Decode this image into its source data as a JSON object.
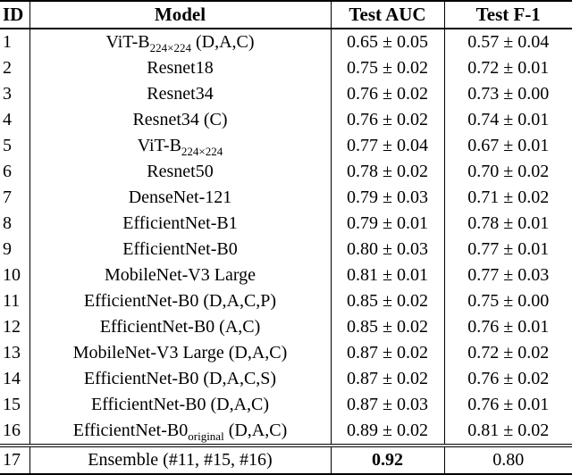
{
  "colors": {
    "text": "#000000",
    "background": "#ffffff",
    "rules": "#000000"
  },
  "table": {
    "headers": {
      "id": "ID",
      "model": "Model",
      "auc": "Test AUC",
      "f1": "Test F-1"
    },
    "rows": [
      {
        "id": "1",
        "model_main": "ViT-B",
        "model_sub": "224×224",
        "model_suffix": " (D,A,C)",
        "auc": "0.65 ± 0.05",
        "f1": "0.57 ± 0.04"
      },
      {
        "id": "2",
        "model_main": "Resnet18",
        "model_sub": "",
        "model_suffix": "",
        "auc": "0.75 ± 0.02",
        "f1": "0.72 ± 0.01"
      },
      {
        "id": "3",
        "model_main": "Resnet34",
        "model_sub": "",
        "model_suffix": "",
        "auc": "0.76 ± 0.02",
        "f1": "0.73 ± 0.00"
      },
      {
        "id": "4",
        "model_main": "Resnet34 (C)",
        "model_sub": "",
        "model_suffix": "",
        "auc": "0.76 ± 0.02",
        "f1": "0.74 ± 0.01"
      },
      {
        "id": "5",
        "model_main": "ViT-B",
        "model_sub": "224×224",
        "model_suffix": "",
        "auc": "0.77 ± 0.04",
        "f1": "0.67 ± 0.01"
      },
      {
        "id": "6",
        "model_main": "Resnet50",
        "model_sub": "",
        "model_suffix": "",
        "auc": "0.78 ± 0.02",
        "f1": "0.70 ± 0.02"
      },
      {
        "id": "7",
        "model_main": "DenseNet-121",
        "model_sub": "",
        "model_suffix": "",
        "auc": "0.79 ± 0.03",
        "f1": "0.71 ± 0.02"
      },
      {
        "id": "8",
        "model_main": "EfficientNet-B1",
        "model_sub": "",
        "model_suffix": "",
        "auc": "0.79 ± 0.01",
        "f1": "0.78 ± 0.01"
      },
      {
        "id": "9",
        "model_main": "EfficientNet-B0",
        "model_sub": "",
        "model_suffix": "",
        "auc": "0.80 ± 0.03",
        "f1": "0.77 ± 0.01"
      },
      {
        "id": "10",
        "model_main": "MobileNet-V3 Large",
        "model_sub": "",
        "model_suffix": "",
        "auc": "0.81 ± 0.01",
        "f1": "0.77 ± 0.03"
      },
      {
        "id": "11",
        "model_main": "EfficientNet-B0 (D,A,C,P)",
        "model_sub": "",
        "model_suffix": "",
        "auc": "0.85 ± 0.02",
        "f1": "0.75 ± 0.00"
      },
      {
        "id": "12",
        "model_main": "EfficientNet-B0 (A,C)",
        "model_sub": "",
        "model_suffix": "",
        "auc": "0.85 ± 0.02",
        "f1": "0.76 ± 0.01"
      },
      {
        "id": "13",
        "model_main": "MobileNet-V3 Large (D,A,C)",
        "model_sub": "",
        "model_suffix": "",
        "auc": "0.87 ± 0.02",
        "f1": "0.72 ± 0.02"
      },
      {
        "id": "14",
        "model_main": "EfficientNet-B0 (D,A,C,S)",
        "model_sub": "",
        "model_suffix": "",
        "auc": "0.87 ± 0.02",
        "f1": "0.76 ± 0.02"
      },
      {
        "id": "15",
        "model_main": "EfficientNet-B0 (D,A,C)",
        "model_sub": "",
        "model_suffix": "",
        "auc": "0.87 ± 0.03",
        "f1": "0.76 ± 0.01"
      },
      {
        "id": "16",
        "model_main": "EfficientNet-B0",
        "model_sub": "original",
        "model_suffix": " (D,A,C)",
        "auc": "0.89 ± 0.02",
        "f1": "0.81 ± 0.02"
      },
      {
        "id": "17",
        "model_main": "Ensemble (#11, #15, #16)",
        "model_sub": "",
        "model_suffix": "",
        "auc": "0.92",
        "f1": "0.80"
      }
    ]
  }
}
